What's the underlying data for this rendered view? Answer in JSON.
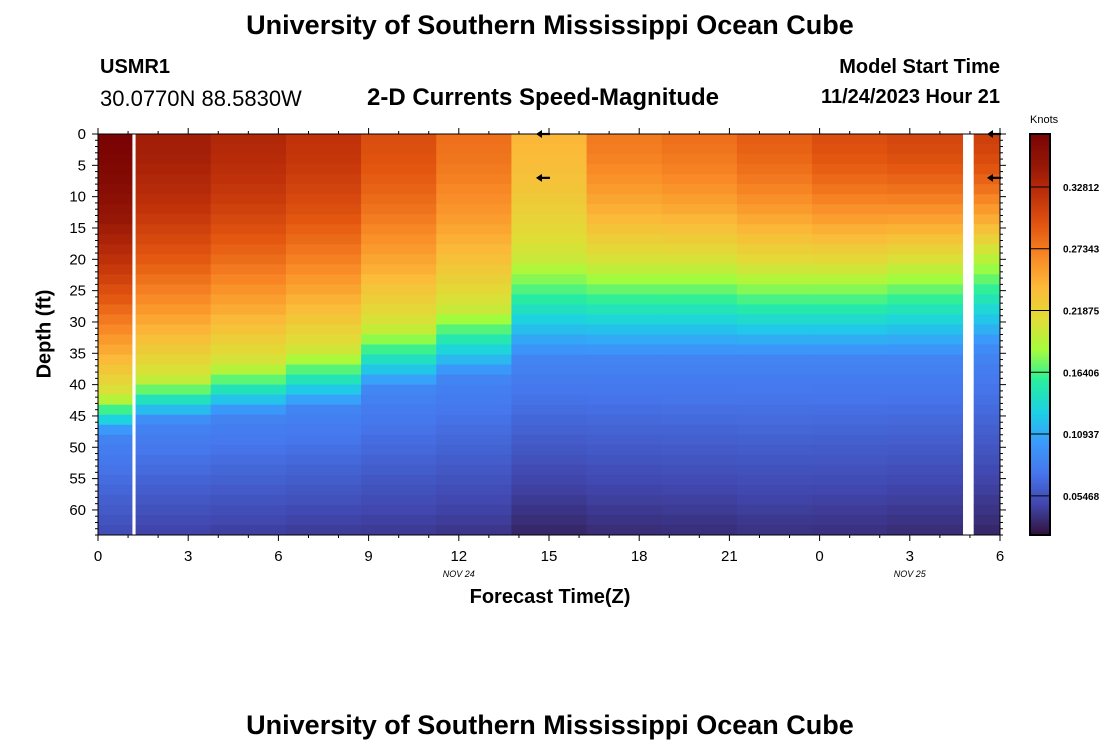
{
  "header": {
    "title": "University of Southern Mississippi Ocean Cube",
    "station_id": "USMR1",
    "station_coords": "30.0770N  88.5830W",
    "plot_subtitle": "2-D Currents Speed-Magnitude",
    "model_start_label": "Model Start Time",
    "model_start_value": "11/24/2023 Hour 21"
  },
  "footer": {
    "title": "University of Southern Mississippi Ocean Cube"
  },
  "chart_data": {
    "type": "heatmap",
    "title": "2-D Currents Speed-Magnitude",
    "xlabel": "Forecast Time(Z)",
    "ylabel": "Depth (ft)",
    "x_ticks": [
      "0",
      "3",
      "6",
      "9",
      "12",
      "15",
      "18",
      "21",
      "0",
      "3",
      "6"
    ],
    "x_tick_hours": [
      0,
      3,
      6,
      9,
      12,
      15,
      18,
      21,
      24,
      27,
      30
    ],
    "xlim": [
      0,
      30
    ],
    "y_ticks": [
      "0",
      "5",
      "10",
      "15",
      "20",
      "25",
      "30",
      "35",
      "40",
      "45",
      "50",
      "55",
      "60"
    ],
    "y_tick_values": [
      0,
      5,
      10,
      15,
      20,
      25,
      30,
      35,
      40,
      45,
      50,
      55,
      60
    ],
    "ylim": [
      0,
      64
    ],
    "date_labels": [
      {
        "text": "NOV 24",
        "hour": 12
      },
      {
        "text": "NOV 25",
        "hour": 27
      }
    ],
    "colorbar": {
      "label": "Knots",
      "ticks": [
        "0.05468",
        "0.10937",
        "0.16406",
        "0.21875",
        "0.27343",
        "0.32812"
      ],
      "tick_values": [
        0.05468,
        0.10937,
        0.16406,
        0.21875,
        0.27343,
        0.32812
      ],
      "range": [
        0.02,
        0.375
      ],
      "colors": [
        "#30123b",
        "#4146ad",
        "#4676ec",
        "#3a9bfc",
        "#1cd1e3",
        "#28ee9e",
        "#a4fc3c",
        "#e1dc37",
        "#fbba39",
        "#f98a26",
        "#e35710",
        "#c0310a",
        "#951606",
        "#7a0403"
      ]
    },
    "time_columns_hours": [
      0.5,
      2.5,
      5,
      7.5,
      10,
      12.5,
      15,
      17.5,
      20,
      22.5,
      25,
      27.5,
      29.75
    ],
    "time_columns_width_hours": [
      1.25,
      2.5,
      2.5,
      2.5,
      2.5,
      2.5,
      2.5,
      2.5,
      2.5,
      2.5,
      2.5,
      2.5,
      1.25
    ],
    "profiles": [
      {
        "surface": 0.375,
        "d_mid": 42,
        "d_cross": 48,
        "bottom": 0.05
      },
      {
        "surface": 0.34,
        "d_mid": 39,
        "d_cross": 46,
        "bottom": 0.045
      },
      {
        "surface": 0.33,
        "d_mid": 37,
        "d_cross": 45,
        "bottom": 0.043
      },
      {
        "surface": 0.32,
        "d_mid": 35,
        "d_cross": 44,
        "bottom": 0.041
      },
      {
        "surface": 0.3,
        "d_mid": 31,
        "d_cross": 41,
        "bottom": 0.04
      },
      {
        "surface": 0.28,
        "d_mid": 28,
        "d_cross": 39,
        "bottom": 0.038
      },
      {
        "surface": 0.24,
        "d_mid": 20,
        "d_cross": 36,
        "bottom": 0.03
      },
      {
        "surface": 0.275,
        "d_mid": 21,
        "d_cross": 36,
        "bottom": 0.033
      },
      {
        "surface": 0.28,
        "d_mid": 21,
        "d_cross": 36,
        "bottom": 0.034
      },
      {
        "surface": 0.29,
        "d_mid": 22,
        "d_cross": 36,
        "bottom": 0.036
      },
      {
        "surface": 0.3,
        "d_mid": 22,
        "d_cross": 36,
        "bottom": 0.035
      },
      {
        "surface": 0.305,
        "d_mid": 21,
        "d_cross": 36,
        "bottom": 0.033
      },
      {
        "surface": 0.31,
        "d_mid": 19,
        "d_cross": 35,
        "bottom": 0.03
      }
    ],
    "vectors": [
      {
        "hour": 14.7,
        "depth": 0,
        "direction": "west"
      },
      {
        "hour": 14.7,
        "depth": 7,
        "direction": "west"
      },
      {
        "hour": 29.7,
        "depth": 0,
        "direction": "west"
      },
      {
        "hour": 29.7,
        "depth": 7,
        "direction": "west"
      }
    ]
  }
}
